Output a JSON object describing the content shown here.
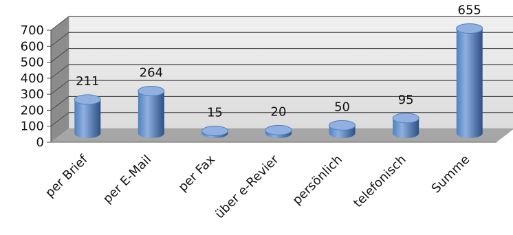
{
  "chart_data": {
    "type": "bar",
    "style": "3d-cylinder",
    "categories": [
      "per Brief",
      "per E-Mail",
      "per Fax",
      "über e-Revier",
      "persönlich",
      "telefonisch",
      "Summe"
    ],
    "values": [
      211,
      264,
      15,
      20,
      50,
      95,
      655
    ],
    "data_labels": [
      "211",
      "264",
      "15",
      "20",
      "50",
      "95",
      "655"
    ],
    "ylim": [
      0,
      700
    ],
    "yticks": [
      0,
      100,
      200,
      300,
      400,
      500,
      600,
      700
    ],
    "grid": true,
    "legend": "none",
    "title": "",
    "xlabel": "",
    "ylabel": "",
    "colors": {
      "bar_light": "#8fb0e0",
      "bar_mid": "#4f81bd",
      "bar_dark": "#2c4f86",
      "wall": "#e6e6e6",
      "floor": "#a6a6a6",
      "side_wall": "#8c8c8c",
      "grid": "#4a4a4a"
    }
  }
}
